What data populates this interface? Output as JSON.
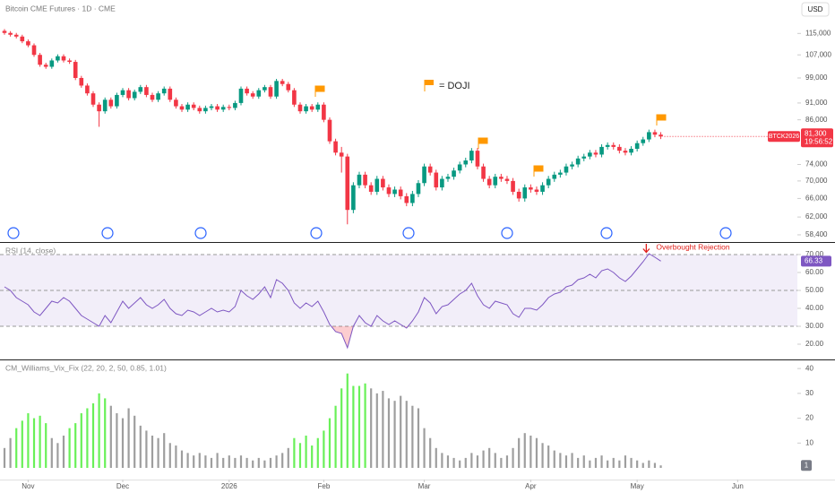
{
  "chart_data": [
    {
      "type": "candlestick",
      "title": "Bitcoin CME Futures · 1D · CME",
      "currency": "USD",
      "log": true,
      "up_color": "#089981",
      "down_color": "#f23645",
      "flag_color": "#ff9800",
      "annotation": "= DOJI",
      "symbol": "BTCK2026",
      "last_label": "81,300",
      "countdown": "19:56:52",
      "xlim": [
        -0.76,
        134.1
      ],
      "xticks": [
        {
          "value": 4,
          "label": "Nov"
        },
        {
          "value": 20,
          "label": "Dec"
        },
        {
          "value": 38,
          "label": "2026"
        },
        {
          "value": 54,
          "label": "Feb"
        },
        {
          "value": 71,
          "label": "Mar"
        },
        {
          "value": 89,
          "label": "Apr"
        },
        {
          "value": 107,
          "label": "May"
        },
        {
          "value": 124,
          "label": "Jun"
        }
      ],
      "ylim": [
        57000,
        128700
      ],
      "yticks": [
        {
          "value": 115000,
          "label": "115,000"
        },
        {
          "value": 107000,
          "label": "107,000"
        },
        {
          "value": 99000,
          "label": "99,000"
        },
        {
          "value": 91000,
          "label": "91,000"
        },
        {
          "value": 86000,
          "label": "86,000"
        },
        {
          "value": 74000,
          "label": "74,000"
        },
        {
          "value": 70000,
          "label": "70,000"
        },
        {
          "value": 66000,
          "label": "66,000"
        },
        {
          "value": 62000,
          "label": "62,000"
        },
        {
          "value": 58400,
          "label": "58,400"
        }
      ],
      "open": [
        116000,
        115200,
        114500,
        113800,
        112000,
        110500,
        107000,
        103500,
        102800,
        105000,
        106500,
        105000,
        104500,
        99000,
        96500,
        94000,
        90500,
        88500,
        92000,
        90000,
        93500,
        95000,
        92500,
        94500,
        96000,
        93500,
        92000,
        94000,
        95500,
        92000,
        90000,
        89000,
        90500,
        89500,
        88500,
        89500,
        90000,
        89000,
        89800,
        89500,
        91000,
        95500,
        94000,
        93000,
        95000,
        96000,
        93000,
        98000,
        97000,
        95000,
        90500,
        88500,
        90000,
        89000,
        90500,
        86000,
        80000,
        77000,
        76000,
        63500,
        69000,
        71500,
        69000,
        67500,
        70500,
        68500,
        67000,
        68000,
        66500,
        65000,
        67000,
        69500,
        73500,
        72000,
        68500,
        70500,
        71000,
        72500,
        74000,
        75000,
        77500,
        73500,
        70500,
        69000,
        71000,
        70500,
        70000,
        67500,
        66000,
        68500,
        68000,
        67500,
        69000,
        70500,
        71500,
        72000,
        73500,
        74000,
        75500,
        76000,
        77000,
        76500,
        78500,
        79000,
        78500,
        77500,
        77000,
        78000,
        79500,
        80500,
        82500,
        81800
      ],
      "high": [
        116700,
        115900,
        115200,
        114500,
        112700,
        111200,
        107700,
        104200,
        105700,
        107200,
        107200,
        105700,
        105200,
        99700,
        97200,
        94700,
        91200,
        92700,
        92700,
        94200,
        95700,
        95700,
        95200,
        96700,
        96700,
        94200,
        94700,
        96200,
        96200,
        92700,
        90700,
        91200,
        91200,
        90200,
        90200,
        90700,
        90700,
        90500,
        90500,
        91700,
        96200,
        96200,
        94700,
        95700,
        96700,
        96700,
        98700,
        98700,
        97700,
        95700,
        91200,
        90700,
        90700,
        91200,
        91200,
        86700,
        80700,
        78500,
        76700,
        69700,
        72200,
        72200,
        69700,
        71200,
        71200,
        69200,
        68700,
        68700,
        67200,
        67700,
        70200,
        74200,
        74200,
        72700,
        71200,
        71700,
        73200,
        74700,
        75700,
        78200,
        78200,
        74200,
        71200,
        71700,
        71700,
        71200,
        70700,
        68200,
        69200,
        69200,
        68700,
        69700,
        71200,
        72200,
        72700,
        74200,
        74700,
        76200,
        76700,
        77700,
        77700,
        79200,
        79700,
        79700,
        79200,
        78200,
        78700,
        80200,
        81200,
        83200,
        83200,
        82500
      ],
      "low": [
        114500,
        113800,
        113100,
        111300,
        109800,
        106300,
        102800,
        102100,
        102100,
        104300,
        104300,
        103800,
        98300,
        95800,
        93300,
        89800,
        84000,
        87800,
        89300,
        89300,
        92800,
        91800,
        91800,
        93800,
        92800,
        91300,
        91300,
        93300,
        91300,
        89300,
        88300,
        88300,
        88800,
        87800,
        87800,
        88800,
        88300,
        88300,
        88800,
        88800,
        90300,
        93300,
        92300,
        92300,
        94300,
        92300,
        92300,
        96300,
        94300,
        89800,
        87800,
        87800,
        88300,
        88300,
        85300,
        79300,
        76300,
        72000,
        60500,
        62800,
        68300,
        68300,
        66800,
        66800,
        67800,
        66300,
        66300,
        65800,
        64300,
        64300,
        66300,
        68800,
        71300,
        67800,
        67800,
        69800,
        70300,
        71800,
        73300,
        74300,
        72800,
        69800,
        68300,
        68300,
        69800,
        69300,
        66800,
        65300,
        65300,
        67300,
        66800,
        66800,
        68300,
        69800,
        70800,
        71300,
        72800,
        73300,
        74800,
        75300,
        75800,
        75800,
        77800,
        77800,
        76800,
        76300,
        76300,
        77300,
        78800,
        79800,
        81100,
        80600
      ],
      "close": [
        115200,
        114500,
        113800,
        112000,
        110500,
        107000,
        103500,
        102800,
        105000,
        106500,
        105000,
        104500,
        99000,
        96500,
        94000,
        90500,
        88500,
        92000,
        90000,
        93500,
        95000,
        92500,
        94500,
        96000,
        93500,
        92000,
        94000,
        95500,
        92000,
        90000,
        89000,
        90500,
        89500,
        88500,
        89500,
        90000,
        89000,
        89800,
        89500,
        91000,
        95500,
        94000,
        93000,
        95000,
        96000,
        93000,
        98000,
        97000,
        95000,
        90500,
        88500,
        90000,
        89000,
        90500,
        86000,
        80000,
        77000,
        76000,
        63500,
        69000,
        71500,
        69000,
        67500,
        70500,
        68500,
        67000,
        68000,
        66500,
        65000,
        67000,
        69500,
        73500,
        72000,
        68500,
        70500,
        71000,
        72500,
        74000,
        75000,
        77500,
        73500,
        70500,
        69000,
        71000,
        70500,
        70000,
        67500,
        66000,
        68500,
        68000,
        67500,
        69000,
        70500,
        71500,
        72000,
        73500,
        74000,
        75500,
        76000,
        77000,
        76500,
        78500,
        79000,
        78500,
        77500,
        77000,
        78000,
        79500,
        80500,
        82500,
        81800,
        81300
      ]
    },
    {
      "type": "line",
      "title": "RSI (14, close)",
      "color": "#7e57c2",
      "band_color": "rgba(126,87,194,0.10)",
      "oversold_color": "rgba(242,54,69,0.25)",
      "annotation": "Overbought Rejection",
      "annotation_color": "#e0201b",
      "ylim": [
        11.5,
        76.5
      ],
      "yticks": [
        {
          "value": 20,
          "label": "20.00"
        },
        {
          "value": 30,
          "label": "30.00"
        },
        {
          "value": 40,
          "label": "40.00"
        },
        {
          "value": 50,
          "label": "50.00"
        },
        {
          "value": 60,
          "label": "60.00"
        },
        {
          "value": 70,
          "label": "70.00"
        }
      ],
      "levels": [
        30,
        50,
        70
      ],
      "values": [
        52,
        50,
        46,
        44,
        42,
        38,
        36,
        40,
        44,
        43,
        46,
        44,
        40,
        36,
        34,
        32,
        30,
        36,
        32,
        38,
        44,
        40,
        43,
        46,
        42,
        40,
        42,
        45,
        40,
        37,
        36,
        39,
        38,
        36,
        38,
        40,
        38,
        39,
        38,
        41,
        50,
        47,
        45,
        48,
        52,
        46,
        56,
        54,
        50,
        43,
        40,
        43,
        41,
        44,
        38,
        31,
        27,
        26,
        18,
        30,
        36,
        32,
        30,
        36,
        33,
        31,
        33,
        31,
        29,
        33,
        38,
        46,
        43,
        37,
        41,
        42,
        45,
        48,
        50,
        54,
        47,
        42,
        40,
        44,
        43,
        42,
        37,
        35,
        40,
        40,
        39,
        42,
        46,
        48,
        49,
        52,
        53,
        56,
        57,
        59,
        57,
        61,
        62,
        60,
        57,
        55,
        58,
        62,
        66,
        70.5,
        68.5,
        66.33
      ]
    },
    {
      "type": "bar",
      "title": "CM_Williams_Vix_Fix (22, 20, 2, 50, 0.85, 1.01)",
      "color": "#9e9e9e",
      "highlight_color": "#69f058",
      "highlighted": [
        2,
        3,
        4,
        5,
        6,
        7,
        11,
        12,
        13,
        14,
        15,
        16,
        17,
        49,
        50,
        51,
        52,
        53,
        54,
        55,
        56,
        57,
        58,
        59,
        60,
        61
      ],
      "ylim": [
        -4.7,
        43.3
      ],
      "yticks": [
        10,
        20,
        30,
        40
      ],
      "values": [
        8,
        12,
        16,
        19,
        22,
        20,
        21,
        18,
        12,
        10,
        13,
        16,
        18,
        22,
        24,
        26,
        30,
        28,
        25,
        22,
        20,
        24,
        21,
        17,
        15,
        13,
        12,
        14,
        10,
        9,
        7,
        6,
        5,
        6,
        5,
        4,
        6,
        4,
        5,
        4,
        5,
        4,
        3,
        4,
        3,
        4,
        5,
        6,
        8,
        12,
        10,
        13,
        9,
        12,
        15,
        20,
        25,
        32,
        38,
        33,
        33,
        34,
        32,
        30,
        31,
        28,
        27,
        29,
        27,
        25,
        24,
        16,
        12,
        8,
        6,
        5,
        4,
        3,
        4,
        6,
        5,
        7,
        8,
        6,
        4,
        5,
        8,
        12,
        14,
        13,
        12,
        10,
        9,
        7,
        6,
        5,
        6,
        4,
        5,
        3,
        4,
        5,
        3,
        4,
        3,
        5,
        4,
        3,
        2,
        3,
        2,
        1
      ]
    }
  ]
}
